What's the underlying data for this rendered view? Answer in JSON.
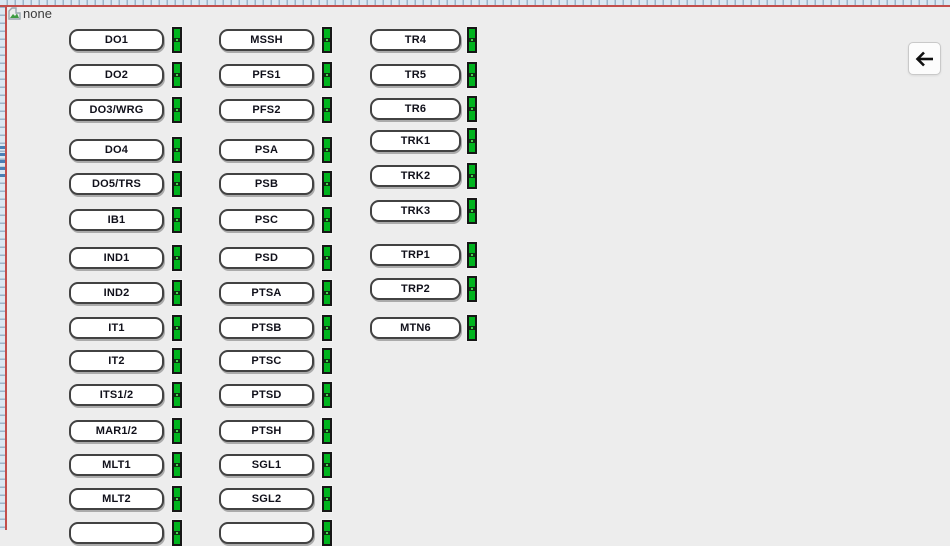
{
  "canvas": {
    "background_color": "#ededed",
    "page_border_color": "#c24f4c"
  },
  "broken_image_placeholder": {
    "icon": "broken-image-icon",
    "alt_text": "none"
  },
  "back_button": {
    "icon": "arrow-left-icon"
  },
  "led": {
    "state": "on",
    "color_on": "#00b41e"
  },
  "columns": [
    {
      "name": "column-1",
      "items": [
        {
          "label": "DO1"
        },
        {
          "label": "DO2"
        },
        {
          "label": "DO3/WRG"
        },
        {
          "label": "DO4"
        },
        {
          "label": "DO5/TRS"
        },
        {
          "label": "IB1"
        },
        {
          "label": "IND1"
        },
        {
          "label": "IND2"
        },
        {
          "label": "IT1"
        },
        {
          "label": "IT2"
        },
        {
          "label": "ITS1/2"
        },
        {
          "label": "MAR1/2"
        },
        {
          "label": "MLT1"
        },
        {
          "label": "MLT2"
        },
        {
          "label": ""
        }
      ]
    },
    {
      "name": "column-2",
      "items": [
        {
          "label": "MSSH"
        },
        {
          "label": "PFS1"
        },
        {
          "label": "PFS2"
        },
        {
          "label": "PSA"
        },
        {
          "label": "PSB"
        },
        {
          "label": "PSC"
        },
        {
          "label": "PSD"
        },
        {
          "label": "PTSA"
        },
        {
          "label": "PTSB"
        },
        {
          "label": "PTSC"
        },
        {
          "label": "PTSD"
        },
        {
          "label": "PTSH"
        },
        {
          "label": "SGL1"
        },
        {
          "label": "SGL2"
        },
        {
          "label": ""
        }
      ]
    },
    {
      "name": "column-3",
      "items": [
        {
          "label": "TR4"
        },
        {
          "label": "TR5"
        },
        {
          "label": "TR6"
        },
        {
          "label": "TRK1"
        },
        {
          "label": "TRK2"
        },
        {
          "label": "TRK3"
        },
        {
          "label": "TRP1"
        },
        {
          "label": "TRP2"
        },
        {
          "label": "MTN6"
        }
      ]
    }
  ]
}
